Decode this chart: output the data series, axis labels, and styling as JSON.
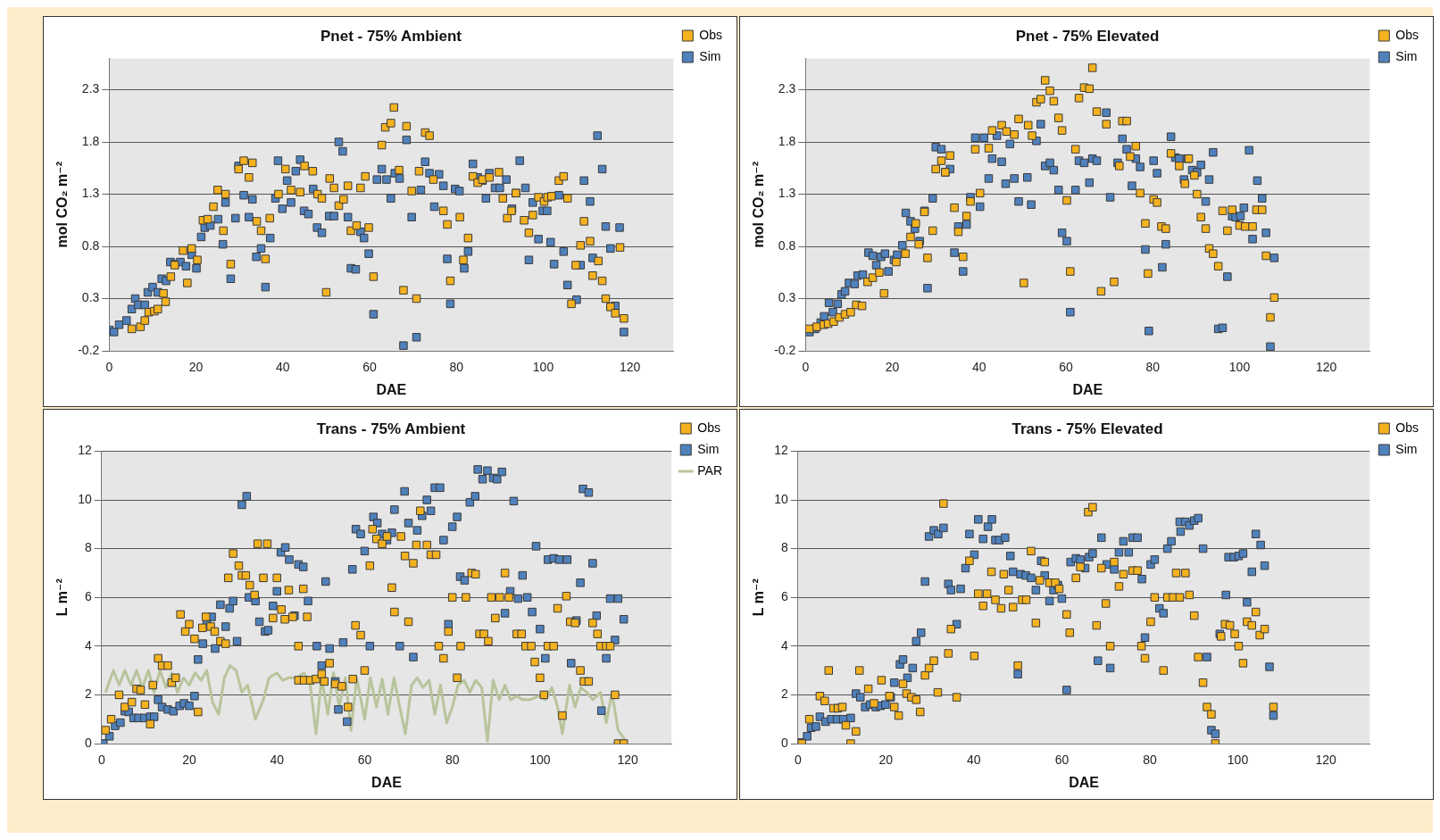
{
  "chart_data": [
    {
      "type": "scatter",
      "title": "Pnet - 75% Ambient",
      "xlabel": "DAE",
      "ylabel": "mol CO₂ m⁻²",
      "xlim": [
        0,
        130
      ],
      "xticks": [
        0,
        20,
        40,
        60,
        80,
        100,
        120
      ],
      "ylim": [
        -0.2,
        2.6
      ],
      "yticks": [
        -0.2,
        0.3,
        0.8,
        1.3,
        1.8,
        2.3
      ],
      "grid": "y",
      "legend": "top right",
      "marker": "square",
      "series": [
        {
          "name": "Obs",
          "color": "#f5b21f",
          "x": [
            5.2,
            7.2,
            8.2,
            9.1,
            10.4,
            11.2,
            13,
            12.5,
            14.2,
            15.1,
            17,
            19,
            18,
            20.3,
            21.6,
            22.7,
            24,
            25,
            26.8,
            26.3,
            28,
            29.8,
            31,
            32.2,
            33,
            34,
            35,
            36,
            37,
            39,
            40.6,
            41.9,
            44,
            45,
            46.9,
            48,
            49,
            50,
            50.8,
            51.8,
            52.9,
            54,
            55,
            55.7,
            57,
            57.9,
            59,
            59.8,
            60.9,
            62.8,
            63.6,
            64.9,
            65.6,
            66.8,
            67.8,
            68.5,
            69.7,
            70.8,
            71.4,
            72.8,
            73.8,
            74.7,
            77,
            77.9,
            78.6,
            80.8,
            81.6,
            82.7,
            83.8,
            84.9,
            86,
            87.6,
            89.8,
            90.7,
            91.7,
            92.7,
            93.7,
            95.6,
            96.7,
            97.6,
            98.9,
            100.2,
            101,
            101.9,
            103.6,
            104.7,
            105.6,
            106.5,
            107.5,
            108.6,
            109.4,
            110.8,
            111.4,
            112.7,
            113.6,
            114.4,
            115.5,
            116.6,
            117.7,
            118.6
          ],
          "values": [
            0.01,
            0.03,
            0.09,
            0.17,
            0.18,
            0.2,
            0.27,
            0.35,
            0.51,
            0.62,
            0.76,
            0.78,
            0.45,
            0.67,
            1.05,
            1.06,
            1.18,
            1.34,
            1.3,
            0.95,
            0.63,
            1.54,
            1.62,
            1.46,
            1.6,
            1.04,
            0.95,
            0.68,
            1.07,
            1.3,
            1.54,
            1.34,
            1.32,
            1.57,
            1.52,
            1.3,
            1.26,
            0.36,
            1.45,
            1.36,
            1.19,
            1.25,
            1.38,
            0.95,
            1.0,
            1.36,
            1.47,
            0.98,
            0.51,
            1.77,
            1.94,
            1.98,
            2.13,
            1.53,
            0.38,
            1.95,
            1.33,
            0.3,
            1.52,
            1.89,
            1.86,
            1.44,
            1.14,
            1.01,
            0.47,
            1.08,
            0.67,
            0.88,
            1.47,
            1.41,
            1.44,
            1.46,
            1.51,
            1.26,
            1.07,
            1.14,
            1.31,
            1.05,
            0.93,
            1.1,
            1.27,
            1.23,
            1.27,
            1.28,
            1.43,
            1.47,
            1.26,
            0.25,
            0.62,
            0.81,
            1.04,
            0.85,
            0.52,
            0.66,
            0.47,
            0.3,
            0.22,
            0.16,
            0.79,
            0.11
          ]
        },
        {
          "name": "Sim",
          "color": "#4f81bd",
          "x": [
            0,
            1.1,
            2.3,
            4,
            5.2,
            6,
            6.7,
            8.2,
            8.9,
            10,
            11.2,
            12.1,
            13.1,
            14.1,
            15.1,
            16.4,
            17.7,
            19,
            20.1,
            21.2,
            22,
            23.3,
            25.1,
            26.8,
            26.2,
            28,
            29.1,
            29.8,
            31,
            32.2,
            33,
            33.9,
            35,
            36,
            37.1,
            38.3,
            38.9,
            39.9,
            41,
            41.9,
            43,
            44,
            44.9,
            45.9,
            47,
            47.9,
            49,
            50.7,
            51.8,
            52.9,
            53.8,
            55,
            55.7,
            56.8,
            57.9,
            58.7,
            59.8,
            60.9,
            61.7,
            62.8,
            63.9,
            64.9,
            65.8,
            66.9,
            67.8,
            68.5,
            69.7,
            70.8,
            71.8,
            72.8,
            73.8,
            74.9,
            76,
            77,
            77.9,
            78.6,
            79.7,
            80.7,
            81.8,
            82.7,
            83.8,
            84.9,
            86,
            86.8,
            87.6,
            88.9,
            90,
            91.5,
            92.8,
            93.7,
            94.6,
            95.9,
            96.7,
            97.6,
            98.9,
            99.9,
            100.9,
            101.7,
            102.5,
            103.6,
            104.7,
            105.6,
            107.7,
            108.6,
            109.4,
            110.8,
            111.4,
            112.5,
            113.6,
            114.4,
            115.5,
            116.6,
            117.6,
            118.6
          ],
          "values": [
            0.0,
            -0.02,
            0.05,
            0.09,
            0.2,
            0.3,
            0.24,
            0.24,
            0.36,
            0.41,
            0.36,
            0.49,
            0.47,
            0.65,
            0.63,
            0.65,
            0.61,
            0.72,
            0.59,
            0.89,
            0.98,
            1.0,
            1.06,
            1.22,
            0.82,
            0.49,
            1.07,
            1.57,
            1.29,
            1.08,
            1.25,
            0.7,
            0.78,
            0.41,
            0.88,
            1.26,
            1.62,
            1.16,
            1.43,
            1.22,
            1.52,
            1.63,
            1.14,
            1.11,
            1.35,
            0.98,
            0.93,
            1.09,
            1.09,
            1.8,
            1.71,
            1.08,
            0.59,
            0.58,
            0.94,
            0.88,
            0.73,
            0.15,
            1.44,
            1.54,
            1.44,
            1.26,
            1.5,
            1.45,
            -0.15,
            1.82,
            1.08,
            -0.07,
            1.34,
            1.61,
            1.5,
            1.18,
            1.49,
            1.38,
            0.68,
            0.25,
            1.35,
            1.33,
            0.59,
            0.75,
            1.59,
            1.46,
            1.43,
            1.26,
            1.5,
            1.36,
            1.36,
            1.44,
            1.16,
            1.31,
            1.62,
            1.36,
            0.67,
            1.22,
            0.87,
            1.14,
            1.14,
            0.84,
            0.63,
            1.29,
            0.75,
            0.43,
            0.29,
            0.62,
            1.43,
            1.23,
            0.69,
            1.86,
            1.54,
            0.99,
            0.78,
            0.23,
            0.98,
            -0.02
          ]
        }
      ]
    },
    {
      "type": "scatter",
      "title": "Pnet - 75% Elevated",
      "xlabel": "DAE",
      "ylabel": "mol CO₂ m⁻²",
      "xlim": [
        0,
        130
      ],
      "xticks": [
        0,
        20,
        40,
        60,
        80,
        100,
        120
      ],
      "ylim": [
        -0.2,
        2.6
      ],
      "yticks": [
        -0.2,
        0.3,
        0.8,
        1.3,
        1.8,
        2.3
      ],
      "grid": "y",
      "legend": "top right",
      "marker": "square",
      "series": [
        {
          "name": "Obs",
          "color": "#f5b21f",
          "x": [
            0.9,
            2.6,
            4.2,
            5.2,
            6.5,
            7.8,
            9.1,
            10.4,
            11.7,
            13,
            14.3,
            15.5,
            17,
            18.1,
            20.9,
            23,
            24.2,
            25.4,
            26.1,
            27.4,
            28.1,
            29.3,
            30,
            31.3,
            32.2,
            33.3,
            34.3,
            35.2,
            36.3,
            37.1,
            38,
            39.1,
            40.2,
            42.2,
            43,
            45.2,
            46.3,
            48.1,
            49.1,
            50.3,
            51.3,
            52.2,
            53.2,
            54.2,
            55.2,
            56.3,
            57.2,
            58.3,
            59.1,
            60.2,
            61,
            62.2,
            63,
            64.2,
            65.4,
            66.1,
            67.1,
            68.1,
            69.3,
            71.1,
            72.3,
            73,
            74,
            74.8,
            76.1,
            77.1,
            78.3,
            78.9,
            80.2,
            81,
            82,
            83,
            84.2,
            86.1,
            87.4,
            88.3,
            89.6,
            90.2,
            91.1,
            92.2,
            93,
            93.9,
            95.1,
            96.1,
            97.2,
            98.3,
            100,
            101.3,
            103,
            103.9,
            105.2,
            106.1,
            107.1,
            108
          ],
          "values": [
            0.01,
            0.03,
            0.05,
            0.06,
            0.08,
            0.12,
            0.15,
            0.17,
            0.24,
            0.23,
            0.46,
            0.5,
            0.55,
            0.35,
            0.65,
            0.73,
            0.89,
            1.02,
            0.82,
            1.13,
            0.69,
            0.95,
            1.54,
            1.62,
            1.51,
            1.67,
            1.17,
            0.94,
            0.7,
            1.09,
            1.23,
            1.73,
            1.31,
            1.74,
            1.91,
            1.96,
            1.9,
            1.87,
            2.02,
            0.45,
            1.96,
            1.86,
            2.18,
            2.21,
            2.39,
            2.29,
            2.19,
            2.03,
            1.91,
            1.24,
            0.56,
            1.73,
            2.22,
            2.32,
            2.31,
            2.51,
            2.09,
            0.37,
            1.97,
            0.46,
            1.57,
            2.0,
            2.0,
            1.66,
            1.76,
            1.31,
            1.02,
            0.54,
            1.25,
            1.22,
            0.99,
            0.97,
            1.69,
            1.57,
            1.4,
            1.64,
            1.48,
            1.3,
            1.08,
            0.97,
            0.78,
            0.73,
            0.61,
            1.14,
            0.95,
            1.15,
            1.0,
            0.99,
            0.99,
            1.15,
            1.15,
            0.71,
            0.12,
            0.31
          ]
        },
        {
          "name": "Sim",
          "color": "#4f81bd",
          "x": [
            0.9,
            2.2,
            3.5,
            4.3,
            5.4,
            6.3,
            7.4,
            8.3,
            9.1,
            10,
            11.3,
            12,
            13.2,
            14.5,
            15.5,
            16.3,
            17.4,
            18.3,
            19.1,
            20.4,
            21.1,
            22.3,
            23.1,
            24.2,
            25.2,
            26.3,
            27.4,
            28.1,
            29.3,
            30,
            31.3,
            32.2,
            33.3,
            34.3,
            35.2,
            36.3,
            37.1,
            38,
            39.1,
            40.2,
            41.1,
            42.2,
            43,
            44.1,
            45.2,
            46.1,
            47.1,
            48.1,
            49.1,
            51.1,
            52,
            53.2,
            54.2,
            55.2,
            56.3,
            57.2,
            58.3,
            59.1,
            60.2,
            61,
            62.2,
            63,
            64.2,
            65.4,
            66.1,
            67.1,
            69.3,
            70.2,
            71.9,
            73,
            74,
            75.2,
            76.1,
            77.1,
            78.3,
            79.1,
            80.2,
            81,
            82.2,
            83,
            84.2,
            85.2,
            86.1,
            87.2,
            88,
            89.1,
            90.2,
            91.1,
            92.2,
            93,
            93.9,
            95.1,
            96.1,
            97.2,
            98.3,
            99.1,
            100.2,
            101,
            102.2,
            103,
            104.1,
            105.2,
            106.1,
            107.1,
            108
          ],
          "values": [
            -0.02,
            0.01,
            0.07,
            0.13,
            0.26,
            0.17,
            0.25,
            0.34,
            0.37,
            0.45,
            0.44,
            0.52,
            0.53,
            0.74,
            0.71,
            0.62,
            0.7,
            0.73,
            0.56,
            0.67,
            0.72,
            0.81,
            1.12,
            1.04,
            0.97,
            0.85,
            1.14,
            0.4,
            1.26,
            1.75,
            1.73,
            1.51,
            1.54,
            0.74,
            0.99,
            0.56,
            1.01,
            1.27,
            1.84,
            1.18,
            1.84,
            1.45,
            1.64,
            1.86,
            1.61,
            1.4,
            1.78,
            1.45,
            1.23,
            1.46,
            1.2,
            1.81,
            1.97,
            1.57,
            1.6,
            1.53,
            1.34,
            0.93,
            0.85,
            0.17,
            1.34,
            1.62,
            1.6,
            1.41,
            1.64,
            1.62,
            2.08,
            1.27,
            1.6,
            1.83,
            1.73,
            1.38,
            1.64,
            1.56,
            0.77,
            -0.01,
            1.62,
            1.5,
            0.6,
            0.82,
            1.85,
            1.65,
            1.64,
            1.44,
            1.64,
            1.53,
            1.51,
            1.58,
            1.23,
            1.44,
            1.7,
            0.01,
            0.02,
            0.51,
            1.09,
            1.08,
            1.09,
            1.17,
            1.72,
            0.87,
            1.43,
            1.26,
            0.93,
            -0.16,
            0.69
          ]
        }
      ]
    },
    {
      "type": "scatter",
      "title": "Trans - 75% Ambient",
      "xlabel": "DAE",
      "ylabel": "L m⁻²",
      "xlim": [
        0,
        130
      ],
      "xticks": [
        0,
        20,
        40,
        60,
        80,
        100,
        120
      ],
      "ylim": [
        0,
        12
      ],
      "yticks": [
        0,
        2,
        4,
        6,
        8,
        10,
        12
      ],
      "grid": "y",
      "legend": "top right",
      "marker": "square",
      "series": [
        {
          "name": "Obs",
          "color": "#f5b21f",
          "x": [
            0.9,
            2.2,
            4,
            5.3,
            6.9,
            8,
            8.9,
            9.9,
            11.1,
            11.7,
            12.9,
            13.8,
            15.1,
            16,
            16.9,
            18,
            19.1,
            20,
            21.2,
            22,
            23,
            23.8,
            24.9,
            25.8,
            27.1,
            28.3,
            28.9,
            30,
            31.3,
            32,
            32.9,
            33.8,
            34.9,
            35.6,
            37.8,
            36.9,
            39.1,
            40,
            41,
            41.8,
            42.7,
            43.6,
            44.9,
            46,
            46.9,
            44.9,
            46.2,
            47.6,
            48.9,
            50.2,
            50.8,
            52,
            53.3,
            54.8,
            56.2,
            57.3,
            57.9,
            59.1,
            60,
            61.2,
            61.8,
            62.7,
            64,
            65.1,
            66.2,
            66.8,
            68.3,
            69.2,
            70,
            71.1,
            71.8,
            72.7,
            74.2,
            75.1,
            76.3,
            76.9,
            78,
            79.1,
            81.1,
            81.9,
            80,
            83.1,
            84.4,
            85.3,
            86.2,
            87.2,
            88.2,
            88.9,
            89.8,
            90.8,
            92,
            92.9,
            94.7,
            95.8,
            96.7,
            98,
            98.8,
            100,
            100.9,
            101.8,
            103.1,
            104,
            105.1,
            106,
            106.9,
            108,
            109.2,
            110,
            111.1,
            112,
            113.1,
            113.8,
            115.1,
            116,
            117.1,
            117.8,
            119.1
          ],
          "values": [
            0.55,
            1.0,
            2.0,
            1.5,
            1.7,
            2.25,
            2.2,
            1.6,
            0.8,
            2.4,
            3.5,
            3.2,
            3.2,
            2.5,
            2.7,
            5.3,
            4.6,
            4.9,
            4.3,
            1.3,
            4.75,
            5.2,
            4.8,
            4.6,
            4.2,
            4.1,
            6.8,
            7.8,
            7.3,
            6.9,
            6.9,
            6.5,
            6.1,
            8.2,
            8.2,
            6.8,
            5.15,
            6.8,
            5.5,
            5.1,
            6.3,
            5.2,
            4.0,
            6.35,
            5.2,
            2.6,
            2.6,
            2.6,
            2.65,
            2.85,
            2.55,
            3.3,
            2.45,
            2.35,
            1.5,
            2.65,
            4.85,
            4.45,
            3.0,
            7.3,
            8.8,
            8.4,
            8.2,
            8.5,
            6.4,
            5.4,
            8.5,
            7.7,
            5.0,
            7.4,
            8.15,
            9.55,
            8.15,
            7.75,
            7.75,
            4.0,
            3.5,
            4.6,
            2.7,
            4.0,
            6.0,
            6.0,
            7.0,
            6.95,
            4.5,
            4.5,
            4.2,
            6.0,
            5.15,
            6.0,
            7.0,
            6.0,
            4.5,
            4.5,
            4.0,
            4.0,
            3.35,
            2.7,
            2.0,
            4.0,
            4.0,
            5.55,
            1.15,
            6.05,
            5.0,
            4.95,
            3.0,
            2.55,
            2.55,
            4.95,
            4.5,
            4.0,
            4.0,
            4.0,
            2.0,
            0,
            0
          ]
        },
        {
          "name": "Sim",
          "color": "#4f81bd",
          "x": [
            0,
            0.4,
            1.8,
            3.1,
            4.3,
            5.3,
            6.2,
            7.3,
            8.4,
            9.8,
            11.1,
            12,
            12.9,
            13.8,
            15.1,
            16.4,
            17.8,
            18.8,
            20,
            21.2,
            22,
            23.1,
            24,
            25.1,
            25.9,
            27.1,
            28.3,
            29.2,
            30,
            30.9,
            32,
            33.1,
            33.6,
            35.1,
            36,
            37.3,
            38,
            39.1,
            40,
            40.9,
            41.9,
            42.8,
            44,
            44.9,
            46,
            47.1,
            49.1,
            50.2,
            51.1,
            52,
            53.3,
            54,
            55.1,
            56,
            57.2,
            58,
            59.1,
            60,
            61.2,
            62,
            62.9,
            64,
            65.1,
            66.2,
            66.8,
            68,
            69.1,
            70,
            71.1,
            72,
            73.1,
            74.2,
            75.1,
            76,
            77.2,
            78,
            79.1,
            80,
            81.1,
            81.8,
            82.8,
            84,
            85.2,
            85.8,
            86.9,
            88,
            89.3,
            90.2,
            91.3,
            92,
            93.2,
            94,
            95,
            96,
            97.1,
            98.2,
            99.1,
            100,
            101.2,
            101.8,
            103.1,
            104.4,
            106.2,
            107.1,
            108.3,
            109.2,
            109.8,
            111.1,
            112,
            112.9,
            114,
            115.1,
            116,
            117.1,
            117.8,
            119.1
          ],
          "values": [
            0,
            0,
            0.3,
            0.73,
            0.86,
            1.33,
            1.3,
            1.05,
            1.05,
            1.05,
            1.1,
            1.1,
            1.8,
            1.5,
            1.4,
            1.33,
            1.55,
            1.65,
            1.55,
            1.95,
            3.45,
            4.1,
            4.9,
            5.2,
            3.9,
            5.7,
            4.8,
            5.55,
            5.85,
            4.2,
            9.8,
            10.15,
            6.0,
            5.85,
            5.0,
            4.6,
            4.65,
            5.65,
            6.25,
            7.85,
            8.05,
            7.55,
            5.25,
            7.35,
            7.25,
            5.85,
            4.0,
            3.2,
            6.65,
            3.9,
            2.55,
            1.4,
            4.15,
            0.9,
            7.15,
            8.8,
            8.6,
            7.9,
            4.0,
            9.3,
            9.05,
            8.6,
            8.35,
            8.65,
            9.6,
            4.0,
            10.35,
            9.05,
            3.55,
            8.75,
            9.35,
            10.0,
            9.55,
            10.5,
            10.5,
            8.35,
            4.9,
            8.9,
            9.3,
            6.85,
            6.7,
            9.9,
            10.15,
            11.25,
            10.85,
            11.2,
            10.9,
            10.85,
            11.15,
            5.35,
            6.25,
            9.95,
            5.95,
            6.9,
            6.0,
            5.4,
            8.1,
            4.7,
            3.5,
            7.55,
            7.6,
            7.55,
            7.55,
            3.3,
            5.05,
            6.6,
            10.45,
            10.3,
            7.4,
            5.25,
            1.35,
            3.5,
            5.95,
            4.25,
            5.95,
            5.1
          ]
        },
        {
          "name": "PAR",
          "type": "line",
          "marker": "none",
          "color": "#b8c49c",
          "x": [
            0.9,
            2.7,
            4,
            5.3,
            6.7,
            8,
            9.3,
            10.7,
            12,
            13.3,
            14.7,
            16,
            17.3,
            18.7,
            20,
            21.3,
            22.7,
            24,
            25.3,
            26.7,
            28,
            29.3,
            30.7,
            32,
            33.3,
            35.1,
            36.9,
            38.2,
            40,
            41.3,
            42.7,
            44.4,
            46.2,
            47.6,
            48.9,
            50.2,
            51.6,
            52.9,
            54.2,
            55.6,
            56.9,
            58.2,
            60,
            61.3,
            62.7,
            64,
            65.3,
            66.7,
            68,
            69.3,
            70.7,
            72,
            73.3,
            74.7,
            76,
            77.3,
            78.7,
            80,
            81.3,
            82.7,
            84,
            85.3,
            86.7,
            88,
            89.3,
            90.7,
            92,
            93.3,
            94.7,
            96,
            97.8,
            99.6,
            101.3,
            102.7,
            104,
            105.1,
            106.7,
            108,
            109.3,
            110.7,
            112,
            113.8,
            115.1,
            116.4,
            117.8,
            119.6
          ],
          "values": [
            2.1,
            3.0,
            2.4,
            3.0,
            2.4,
            3.0,
            2.3,
            3.0,
            2.1,
            3.0,
            2.3,
            2.9,
            2.1,
            2.7,
            2.4,
            2.9,
            2.6,
            3.0,
            1.7,
            1.2,
            2.7,
            3.2,
            3.0,
            2.1,
            2.4,
            1.0,
            1.8,
            2.7,
            2.9,
            2.6,
            2.7,
            2.7,
            2.9,
            2.4,
            0.4,
            2.7,
            1.2,
            2.9,
            1.5,
            2.7,
            0.55,
            2.7,
            1.0,
            2.7,
            1.5,
            2.65,
            1.2,
            2.7,
            1.5,
            0.4,
            2.4,
            2.7,
            2.3,
            2.6,
            1.2,
            2.4,
            0.85,
            1.5,
            2.4,
            2.6,
            2.1,
            2.6,
            2.3,
            0.1,
            2.6,
            1.8,
            2.4,
            1.8,
            1.95,
            1.8,
            1.8,
            1.95,
            1.8,
            2.3,
            1.5,
            0.4,
            2.4,
            1.5,
            2.3,
            2.1,
            1.8,
            2.1,
            0.85,
            2.1,
            0.55,
            0.1
          ]
        }
      ]
    },
    {
      "type": "scatter",
      "title": "Trans - 75% Elevated",
      "xlabel": "DAE",
      "ylabel": "L m⁻²",
      "xlim": [
        0,
        130
      ],
      "xticks": [
        0,
        20,
        40,
        60,
        80,
        100,
        120
      ],
      "ylim": [
        0,
        12
      ],
      "yticks": [
        0,
        2,
        4,
        6,
        8,
        10,
        12
      ],
      "grid": "y",
      "legend": "top right",
      "marker": "square",
      "series": [
        {
          "name": "Obs",
          "color": "#f5b21f",
          "x": [
            0.9,
            2.6,
            5,
            6.1,
            7,
            8.1,
            9.1,
            10.1,
            10.9,
            12,
            13.2,
            14,
            16,
            17.3,
            19,
            20.8,
            21.9,
            22.9,
            23.9,
            24.7,
            25.8,
            26.9,
            27.8,
            28.9,
            29.8,
            30.9,
            31.8,
            33.1,
            34.2,
            34.8,
            36.1,
            39,
            40.1,
            41,
            42.1,
            43,
            44,
            44.9,
            46.2,
            46.8,
            47.9,
            48.9,
            50,
            51,
            51.9,
            53,
            54.1,
            55,
            56.1,
            57.2,
            58.5,
            59.4,
            61.1,
            61.8,
            63.2,
            64.2,
            66,
            67,
            67.9,
            69,
            70,
            71,
            71.9,
            73,
            74,
            76.1,
            77.2,
            78.1,
            78.9,
            80.2,
            81.1,
            83.1,
            84,
            85.3,
            86.8,
            86,
            88.1,
            89,
            90.1,
            91,
            92.1,
            93,
            94,
            94.9,
            96.2,
            97.1,
            98.2,
            99.3,
            100.2,
            101.2,
            102.1,
            103.2,
            104.1,
            105,
            106.1,
            108.1
          ],
          "values": [
            0,
            1.0,
            1.95,
            1.75,
            3.0,
            1.45,
            1.45,
            1.5,
            0.75,
            0,
            0.5,
            3.0,
            2.25,
            1.65,
            2.6,
            1.95,
            1.5,
            1.15,
            2.45,
            2.05,
            1.9,
            1.8,
            1.3,
            2.8,
            3.1,
            3.4,
            2.1,
            9.85,
            3.7,
            4.7,
            1.9,
            7.5,
            3.6,
            6.15,
            5.65,
            6.15,
            7.05,
            5.9,
            5.55,
            6.95,
            6.3,
            5.6,
            3.2,
            5.9,
            5.9,
            7.9,
            4.95,
            6.7,
            7.45,
            6.6,
            6.6,
            6.35,
            5.3,
            4.55,
            6.8,
            7.25,
            9.5,
            9.7,
            4.85,
            7.2,
            5.75,
            4.0,
            7.45,
            6.45,
            6.95,
            7.1,
            7.1,
            4.0,
            3.5,
            5.0,
            6.0,
            3.0,
            6.0,
            6.0,
            6.0,
            7.0,
            7.0,
            6.1,
            5.25,
            3.55,
            2.5,
            1.5,
            1.2,
            0,
            4.4,
            4.9,
            4.85,
            4.5,
            4.0,
            3.3,
            5.0,
            4.85,
            5.4,
            4.45,
            4.7,
            1.5
          ]
        },
        {
          "name": "Sim",
          "color": "#4f81bd",
          "x": [
            0.9,
            2.1,
            3,
            4.1,
            5,
            6.3,
            7.6,
            8.9,
            10.3,
            12,
            13.2,
            14.2,
            15.3,
            16.4,
            17.7,
            18.8,
            19.9,
            21.1,
            21.9,
            23.2,
            23.9,
            24.9,
            26.1,
            26.9,
            28,
            28.9,
            29.8,
            30.9,
            31.9,
            33.1,
            34.2,
            34.8,
            36.1,
            37,
            38.1,
            39,
            40.1,
            41,
            42.1,
            43.2,
            44.1,
            44.9,
            45.8,
            47.1,
            48.3,
            48.9,
            50,
            50.6,
            51.8,
            53,
            54.1,
            55.3,
            56.1,
            57.2,
            58.1,
            59.1,
            60,
            61.1,
            62,
            63.2,
            64.2,
            65.3,
            66.2,
            67,
            68.2,
            69,
            70.2,
            71,
            71.9,
            73,
            74,
            75.2,
            76.1,
            77.2,
            78.2,
            78.9,
            80.2,
            81.1,
            82.2,
            83.1,
            84,
            84.9,
            87,
            86.8,
            88.1,
            89,
            90.1,
            91,
            92.1,
            93,
            94,
            94.9,
            95.9,
            97.3,
            97.9,
            99.1,
            100.2,
            101.2,
            102.1,
            103.2,
            104.1,
            105.2,
            106.1,
            107.2,
            108.1
          ],
          "values": [
            0.05,
            0.3,
            0.65,
            0.7,
            1.1,
            0.9,
            1.0,
            1.0,
            1.0,
            1.05,
            2.05,
            1.9,
            1.5,
            1.6,
            1.5,
            1.55,
            1.6,
            1.9,
            2.5,
            3.25,
            3.45,
            2.7,
            3.1,
            4.2,
            4.55,
            6.65,
            8.5,
            8.75,
            8.6,
            8.85,
            6.55,
            6.3,
            4.9,
            6.35,
            7.2,
            8.6,
            7.75,
            9.2,
            8.4,
            8.9,
            9.2,
            8.35,
            8.35,
            8.45,
            7.7,
            7.05,
            2.85,
            6.95,
            6.9,
            6.8,
            6.3,
            7.5,
            6.9,
            5.85,
            6.3,
            6.5,
            5.95,
            2.2,
            7.45,
            7.6,
            7.55,
            7.2,
            7.65,
            7.8,
            3.4,
            8.45,
            7.35,
            3.1,
            7.15,
            7.85,
            8.3,
            7.85,
            8.45,
            8.45,
            6.75,
            4.35,
            7.35,
            7.55,
            5.55,
            5.35,
            8.0,
            8.3,
            8.7,
            9.1,
            9.1,
            8.95,
            9.15,
            9.25,
            8.0,
            3.55,
            0.55,
            0.4,
            4.5,
            6.1,
            7.65,
            7.65,
            7.7,
            7.8,
            5.8,
            7.05,
            8.6,
            8.15,
            7.3,
            3.15,
            1.15
          ]
        }
      ]
    }
  ]
}
